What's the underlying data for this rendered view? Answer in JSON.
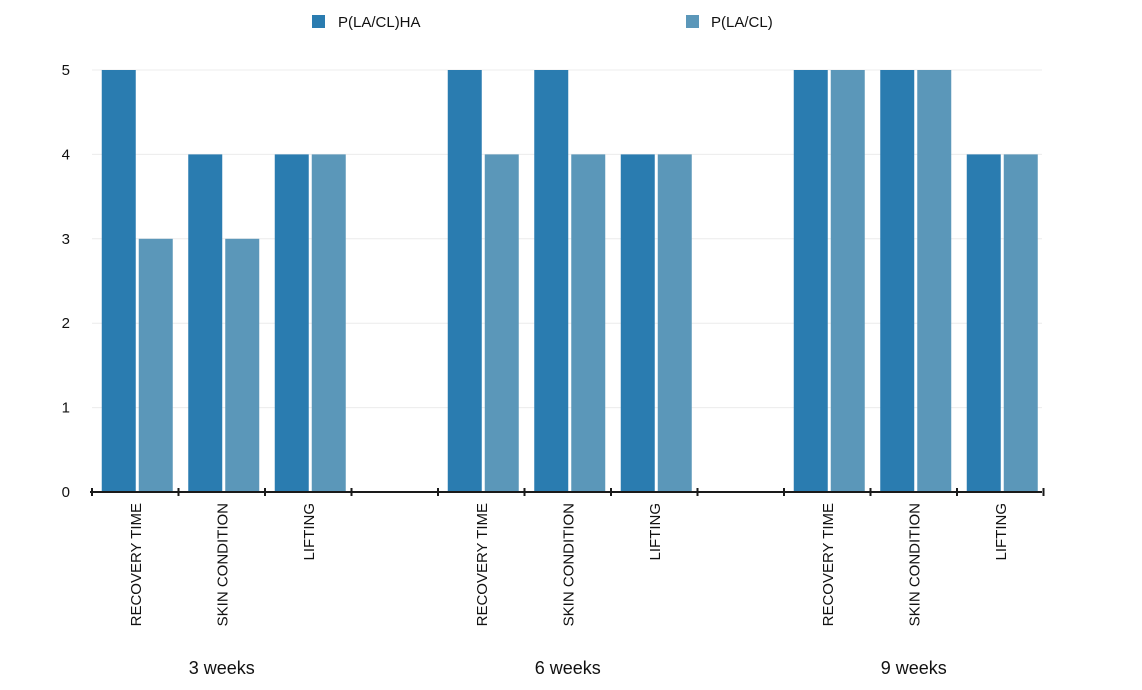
{
  "chart_data": {
    "type": "bar",
    "title": "",
    "xlabel": "",
    "ylabel": "",
    "ylim": [
      0,
      5
    ],
    "yticks": [
      0,
      1,
      2,
      3,
      4,
      5
    ],
    "grid": "horizontal",
    "legend_position": "top",
    "groups": [
      {
        "label": "3 weeks",
        "categories": [
          "RECOVERY TIME",
          "SKIN CONDITION",
          "LIFTING"
        ],
        "series": [
          {
            "name": "P(LA/CL)HA",
            "values": [
              5,
              4,
              4
            ]
          },
          {
            "name": "P(LA/CL)",
            "values": [
              3,
              3,
              4
            ]
          }
        ]
      },
      {
        "label": "6 weeks",
        "categories": [
          "RECOVERY TIME",
          "SKIN CONDITION",
          "LIFTING"
        ],
        "series": [
          {
            "name": "P(LA/CL)HA",
            "values": [
              5,
              5,
              4
            ]
          },
          {
            "name": "P(LA/CL)",
            "values": [
              4,
              4,
              4
            ]
          }
        ]
      },
      {
        "label": "9 weeks",
        "categories": [
          "RECOVERY TIME",
          "SKIN CONDITION",
          "LIFTING"
        ],
        "series": [
          {
            "name": "P(LA/CL)HA",
            "values": [
              5,
              5,
              4
            ]
          },
          {
            "name": "P(LA/CL)",
            "values": [
              5,
              5,
              4
            ]
          }
        ]
      }
    ],
    "legend": [
      {
        "name": "P(LA/CL)HA",
        "color": "#2a7cb0"
      },
      {
        "name": "P(LA/CL)",
        "color": "#5b97b9"
      }
    ]
  }
}
